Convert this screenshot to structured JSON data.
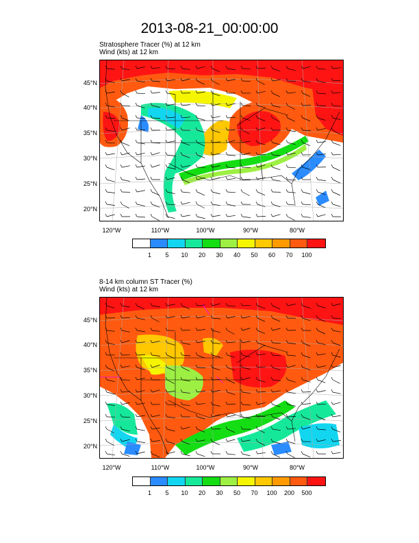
{
  "title": "2013-08-21_00:00:00",
  "panels": [
    {
      "subtitle_line1": "Stratosphere Tracer   (%)     at   12 km",
      "subtitle_line2": "Wind   (kts)     at   12 km",
      "lat_labels": [
        "45°N",
        "40°N",
        "35°N",
        "30°N",
        "25°N",
        "20°N"
      ],
      "lon_labels": [
        "120°W",
        "110°W",
        "100°W",
        "90°W",
        "80°W"
      ],
      "colorbar_labels": [
        "1",
        "5",
        "10",
        "20",
        "30",
        "40",
        "50",
        "60",
        "70",
        "100"
      ],
      "colorbar_colors": [
        "#ffffff",
        "#2a8cff",
        "#12d6f0",
        "#16e89a",
        "#14dd14",
        "#9df043",
        "#f5f500",
        "#ffc800",
        "#ff9a00",
        "#ff5a10",
        "#ff1414"
      ]
    },
    {
      "subtitle_line1": "8-14 km column ST Tracer   (%)",
      "subtitle_line2": "Wind   (kts)     at   12 km",
      "lat_labels": [
        "45°N",
        "40°N",
        "35°N",
        "30°N",
        "25°N",
        "20°N"
      ],
      "lon_labels": [
        "120°W",
        "110°W",
        "100°W",
        "90°W",
        "80°W"
      ],
      "colorbar_labels": [
        "1",
        "5",
        "10",
        "20",
        "30",
        "50",
        "70",
        "100",
        "200",
        "500"
      ],
      "colorbar_colors": [
        "#ffffff",
        "#2a8cff",
        "#12d6f0",
        "#16e89a",
        "#14dd14",
        "#9df043",
        "#f5f500",
        "#ffc800",
        "#ff9a00",
        "#ff5a10",
        "#ff1414"
      ]
    }
  ]
}
